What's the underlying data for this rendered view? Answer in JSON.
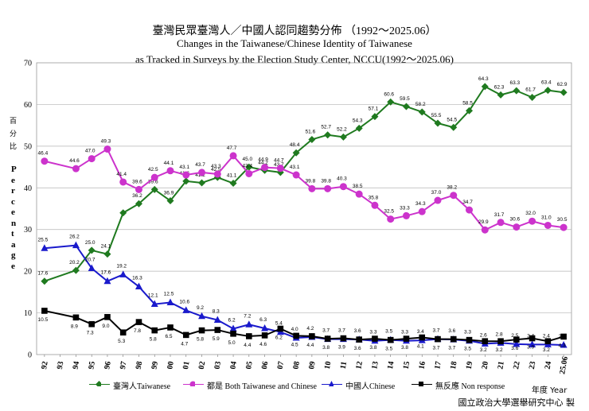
{
  "chart_data": {
    "type": "line",
    "title": "臺灣民眾臺灣人／中國人認同趨勢分佈 （1992～2025.06）",
    "subtitle_line1": "Changes in the Taiwanese/Chinese Identity of Taiwanese",
    "subtitle_line2": "as Tracked in Surveys by the Election Study Center, NCCU(1992～2025.06)",
    "ylabel_cn": [
      "百",
      "分",
      "比"
    ],
    "ylabel_en": [
      "P",
      "e",
      "r",
      "c",
      "e",
      "n",
      "t",
      "a",
      "g",
      "e"
    ],
    "xlabel": "年度 Year",
    "ylim": [
      0,
      70
    ],
    "yticks": [
      "0",
      "10",
      "20",
      "30",
      "40",
      "50",
      "60",
      "70"
    ],
    "grid": true,
    "x_tick_labels": [
      "92",
      "93",
      "94",
      "95",
      "96",
      "97",
      "98",
      "99",
      "00",
      "01",
      "02",
      "03",
      "04",
      "05",
      "06",
      "07",
      "08",
      "09",
      "10",
      "11",
      "12",
      "13",
      "14",
      "15",
      "16",
      "17",
      "18",
      "19",
      "20",
      "21",
      "22",
      "23",
      "24",
      "25.06"
    ],
    "source": "國立政治大學選舉研究中心 製",
    "series": [
      {
        "name": "臺灣人Taiwanese",
        "color": "#1f7a1f",
        "marker": "diamond",
        "x": [
          0,
          2,
          3,
          4,
          5,
          6,
          7,
          8,
          9,
          10,
          11,
          12,
          13,
          14,
          15,
          16,
          17,
          18,
          19,
          20,
          21,
          22,
          23,
          24,
          25,
          26,
          27,
          28,
          29,
          30,
          31,
          32,
          33
        ],
        "values": [
          17.6,
          20.2,
          25.0,
          24.1,
          34.0,
          36.2,
          39.6,
          36.9,
          41.6,
          41.2,
          42.5,
          41.1,
          45.0,
          44.2,
          43.7,
          48.4,
          51.6,
          52.7,
          52.2,
          54.3,
          57.1,
          60.6,
          59.5,
          58.2,
          55.5,
          54.5,
          58.5,
          64.3,
          62.3,
          63.3,
          61.7,
          63.4,
          62.9
        ],
        "labels": [
          "17.6",
          "20.2",
          "25.0",
          "24.1",
          "",
          "36.2",
          "39.6",
          "36.9",
          "41.6",
          "41.2",
          "42.5",
          "41.1",
          "45.0",
          "44.2",
          "43.7",
          "48.4",
          "51.6",
          "52.7",
          "52.2",
          "54.3",
          "57.1",
          "60.6",
          "59.5",
          "58.2",
          "55.5",
          "54.5",
          "58.5",
          "64.3",
          "62.3",
          "63.3",
          "61.7",
          "63.4",
          "62.9"
        ]
      },
      {
        "name": "都是 Both Taiwanese and Chinese",
        "color": "#cc33cc",
        "marker": "circle",
        "x": [
          0,
          2,
          3,
          4,
          5,
          6,
          7,
          8,
          9,
          10,
          11,
          12,
          13,
          14,
          15,
          16,
          17,
          18,
          19,
          20,
          21,
          22,
          23,
          24,
          25,
          26,
          27,
          28,
          29,
          30,
          31,
          32,
          33
        ],
        "values": [
          46.4,
          44.6,
          47.0,
          49.3,
          41.4,
          39.6,
          42.5,
          44.1,
          43.1,
          43.7,
          43.3,
          47.7,
          43.4,
          44.9,
          44.7,
          43.1,
          39.8,
          39.8,
          40.3,
          38.5,
          35.8,
          32.5,
          33.3,
          34.3,
          37.0,
          38.2,
          34.7,
          29.9,
          31.7,
          30.6,
          32.0,
          31.0,
          30.5
        ],
        "labels": [
          "46.4",
          "44.6",
          "47.0",
          "49.3",
          "41.4",
          "39.6",
          "42.5",
          "44.1",
          "43.1",
          "43.7",
          "43.3",
          "47.7",
          "43.4",
          "44.9",
          "44.7",
          "43.1",
          "39.8",
          "39.8",
          "40.3",
          "38.5",
          "35.8",
          "32.5",
          "33.3",
          "34.3",
          "37.0",
          "38.2",
          "34.7",
          "29.9",
          "31.7",
          "30.6",
          "32.0",
          "31.0",
          "30.5"
        ]
      },
      {
        "name": "中國人Chinese",
        "color": "#1a1acc",
        "marker": "triangle",
        "x": [
          0,
          2,
          3,
          4,
          5,
          6,
          7,
          8,
          9,
          10,
          11,
          12,
          13,
          14,
          15,
          16,
          17,
          18,
          19,
          20,
          21,
          22,
          23,
          24,
          25,
          26,
          27,
          28,
          29,
          30,
          31,
          32,
          33
        ],
        "values": [
          25.5,
          26.2,
          20.7,
          17.6,
          19.2,
          16.3,
          12.1,
          12.5,
          10.6,
          9.2,
          8.3,
          6.2,
          7.2,
          6.3,
          5.4,
          4.0,
          4.2,
          3.7,
          3.7,
          3.6,
          3.3,
          3.5,
          3.3,
          3.4,
          3.7,
          3.6,
          3.3,
          2.6,
          2.8,
          2.5,
          2.4,
          2.4,
          2.3
        ],
        "labels": [
          "25.5",
          "26.2",
          "20.7",
          "17.6",
          "19.2",
          "16.3",
          "12.1",
          "12.5",
          "10.6",
          "9.2",
          "8.3",
          "6.2",
          "7.2",
          "6.3",
          "5.4",
          "4.0",
          "4.2",
          "3.7",
          "3.7",
          "3.6",
          "3.3",
          "3.5",
          "3.3",
          "3.4",
          "3.7",
          "3.6",
          "3.3",
          "2.6",
          "2.8",
          "2.5",
          "2.4",
          "2.4",
          "2.3"
        ]
      },
      {
        "name": "無反應 Non response",
        "color": "#000000",
        "marker": "square",
        "x": [
          0,
          2,
          3,
          4,
          5,
          6,
          7,
          8,
          9,
          10,
          11,
          12,
          13,
          14,
          15,
          16,
          17,
          18,
          19,
          20,
          21,
          22,
          23,
          24,
          25,
          26,
          27,
          28,
          29,
          30,
          31,
          32,
          33
        ],
        "values": [
          10.5,
          8.9,
          7.3,
          9.0,
          5.3,
          7.8,
          5.8,
          6.5,
          4.7,
          5.8,
          5.9,
          5.0,
          4.4,
          4.6,
          6.2,
          4.5,
          4.4,
          3.8,
          3.9,
          3.6,
          3.8,
          3.5,
          3.8,
          4.1,
          3.7,
          3.7,
          3.5,
          3.2,
          3.2,
          3.6,
          3.9,
          3.2,
          4.3
        ],
        "labels": [
          "10.5",
          "8.9",
          "7.3",
          "9.0",
          "5.3",
          "7.8",
          "5.8",
          "6.5",
          "4.7",
          "5.8",
          "5.9",
          "5.0",
          "4.4",
          "4.6",
          "6.2",
          "4.5",
          "4.4",
          "3.8",
          "3.9",
          "3.6",
          "3.8",
          "3.5",
          "3.8",
          "4.1",
          "3.7",
          "3.7",
          "3.5",
          "3.2",
          "3.2",
          "3.6",
          "3.9",
          "3.2",
          "4.3"
        ]
      }
    ]
  }
}
